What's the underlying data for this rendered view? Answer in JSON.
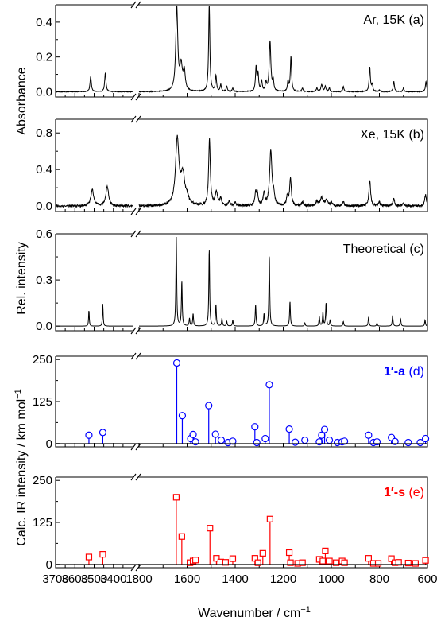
{
  "chart_data": {
    "type": "line",
    "x_axis": {
      "label": "Wavenumber / cm",
      "label_superscript": "−1",
      "reversed": true,
      "broken": true,
      "left_segment": {
        "range": [
          3700,
          3300
        ],
        "ticks": [
          3700,
          3600,
          3500,
          3400
        ]
      },
      "right_segment": {
        "range": [
          1800,
          600
        ],
        "ticks": [
          1800,
          1600,
          1400,
          1200,
          1000,
          800,
          600
        ]
      }
    },
    "shared_ylabels": {
      "absorbance": "Absorbance",
      "calc": "Calc. IR intensity / km mol",
      "calc_superscript": "−1"
    },
    "panels": [
      {
        "id": "a",
        "type": "line",
        "label": "Ar, 15K  (a)",
        "color": "#000000",
        "ylim": [
          -0.03,
          0.5
        ],
        "yticks": [
          "0.0",
          "0.2",
          "0.4"
        ],
        "ytick_values": [
          0,
          0.2,
          0.4
        ],
        "noise": 0.002,
        "width_scale": 1.0,
        "peaks": [
          [
            3518,
            0.09,
            4
          ],
          [
            3442,
            0.11,
            4
          ],
          [
            1643,
            0.48,
            5
          ],
          [
            1625,
            0.14,
            6
          ],
          [
            1612,
            0.11,
            5
          ],
          [
            1508,
            0.5,
            3
          ],
          [
            1480,
            0.09,
            3
          ],
          [
            1460,
            0.04,
            3
          ],
          [
            1435,
            0.03,
            3
          ],
          [
            1410,
            0.02,
            3
          ],
          [
            1313,
            0.14,
            3
          ],
          [
            1305,
            0.1,
            3
          ],
          [
            1290,
            0.06,
            3
          ],
          [
            1272,
            0.05,
            3
          ],
          [
            1255,
            0.29,
            4
          ],
          [
            1242,
            0.06,
            3
          ],
          [
            1180,
            0.06,
            3
          ],
          [
            1168,
            0.2,
            3
          ],
          [
            1120,
            0.02,
            3
          ],
          [
            1060,
            0.02,
            3
          ],
          [
            1040,
            0.04,
            4
          ],
          [
            1025,
            0.03,
            3
          ],
          [
            1008,
            0.02,
            3
          ],
          [
            950,
            0.03,
            3
          ],
          [
            840,
            0.14,
            3
          ],
          [
            830,
            0.04,
            3
          ],
          [
            800,
            0.01,
            3
          ],
          [
            740,
            0.06,
            3
          ],
          [
            700,
            0.02,
            3
          ],
          [
            606,
            0.06,
            3
          ]
        ]
      },
      {
        "id": "b",
        "type": "line",
        "label": "Xe, 15K  (b)",
        "color": "#000000",
        "ylim": [
          -0.06,
          0.95
        ],
        "yticks": [
          "0.0",
          "0.4",
          "0.8"
        ],
        "ytick_values": [
          0,
          0.4,
          0.8
        ],
        "noise": 0.012,
        "width_scale": 1.4,
        "peaks": [
          [
            3510,
            0.18,
            6
          ],
          [
            3432,
            0.22,
            6
          ],
          [
            1641,
            0.72,
            6
          ],
          [
            1618,
            0.32,
            7
          ],
          [
            1600,
            0.06,
            6
          ],
          [
            1507,
            0.72,
            3
          ],
          [
            1478,
            0.15,
            4
          ],
          [
            1460,
            0.08,
            3
          ],
          [
            1425,
            0.05,
            3
          ],
          [
            1400,
            0.04,
            3
          ],
          [
            1315,
            0.13,
            3
          ],
          [
            1308,
            0.12,
            3
          ],
          [
            1280,
            0.14,
            3
          ],
          [
            1252,
            0.6,
            4
          ],
          [
            1240,
            0.1,
            3
          ],
          [
            1183,
            0.1,
            3
          ],
          [
            1170,
            0.3,
            3
          ],
          [
            1120,
            0.04,
            3
          ],
          [
            1060,
            0.05,
            3
          ],
          [
            1040,
            0.09,
            5
          ],
          [
            1020,
            0.06,
            4
          ],
          [
            1000,
            0.04,
            3
          ],
          [
            950,
            0.05,
            3
          ],
          [
            840,
            0.28,
            3
          ],
          [
            800,
            0.04,
            3
          ],
          [
            740,
            0.08,
            3
          ],
          [
            700,
            0.03,
            3
          ],
          [
            608,
            0.12,
            3
          ]
        ]
      },
      {
        "id": "c",
        "type": "line",
        "label": "Theoretical  (c)",
        "color": "#000000",
        "ylabel": "Rel. intensity",
        "ylim": [
          -0.03,
          0.6
        ],
        "yticks": [
          "0.0",
          "0.3",
          "0.6"
        ],
        "ytick_values": [
          0,
          0.3,
          0.6
        ],
        "noise": 0.0,
        "width_scale": 1.0,
        "peaks": [
          [
            3527,
            0.11,
            2
          ],
          [
            3455,
            0.15,
            2
          ],
          [
            1645,
            0.58,
            2
          ],
          [
            1622,
            0.29,
            2
          ],
          [
            1590,
            0.05,
            2
          ],
          [
            1575,
            0.08,
            2
          ],
          [
            1508,
            0.5,
            2
          ],
          [
            1480,
            0.14,
            2
          ],
          [
            1455,
            0.05,
            2
          ],
          [
            1435,
            0.03,
            2
          ],
          [
            1410,
            0.04,
            2
          ],
          [
            1315,
            0.14,
            2
          ],
          [
            1280,
            0.08,
            2
          ],
          [
            1258,
            0.46,
            2
          ],
          [
            1172,
            0.16,
            2
          ],
          [
            1110,
            0.02,
            2
          ],
          [
            1050,
            0.06,
            2
          ],
          [
            1035,
            0.09,
            2
          ],
          [
            1022,
            0.15,
            2
          ],
          [
            1005,
            0.04,
            2
          ],
          [
            950,
            0.03,
            2
          ],
          [
            845,
            0.06,
            2
          ],
          [
            810,
            0.02,
            2
          ],
          [
            745,
            0.07,
            2
          ],
          [
            712,
            0.05,
            2
          ],
          [
            610,
            0.04,
            2
          ]
        ]
      },
      {
        "id": "d",
        "type": "stem",
        "label": "1′-a",
        "label_suffix": "(d)",
        "color": "#0000ff",
        "marker": "circle",
        "ylim": [
          -10,
          260
        ],
        "yticks": [
          "0",
          "125",
          "250"
        ],
        "ytick_values": [
          0,
          125,
          250
        ],
        "sticks": [
          [
            3527,
            25
          ],
          [
            3455,
            33
          ],
          [
            1643,
            240
          ],
          [
            1620,
            83
          ],
          [
            1585,
            15
          ],
          [
            1575,
            27
          ],
          [
            1565,
            5
          ],
          [
            1510,
            113
          ],
          [
            1482,
            28
          ],
          [
            1458,
            10
          ],
          [
            1430,
            3
          ],
          [
            1410,
            7
          ],
          [
            1318,
            50
          ],
          [
            1310,
            3
          ],
          [
            1275,
            15
          ],
          [
            1258,
            175
          ],
          [
            1175,
            43
          ],
          [
            1150,
            4
          ],
          [
            1110,
            10
          ],
          [
            1050,
            5
          ],
          [
            1040,
            25
          ],
          [
            1028,
            42
          ],
          [
            1008,
            10
          ],
          [
            975,
            3
          ],
          [
            955,
            5
          ],
          [
            945,
            7
          ],
          [
            845,
            25
          ],
          [
            825,
            3
          ],
          [
            810,
            5
          ],
          [
            750,
            18
          ],
          [
            735,
            6
          ],
          [
            680,
            3
          ],
          [
            630,
            3
          ],
          [
            608,
            15
          ]
        ]
      },
      {
        "id": "e",
        "type": "stem",
        "label": "1′-s",
        "label_suffix": "(e)",
        "color": "#ff0000",
        "marker": "square",
        "ylim": [
          -10,
          260
        ],
        "yticks": [
          "0",
          "125",
          "250"
        ],
        "ytick_values": [
          0,
          125,
          250
        ],
        "sticks": [
          [
            3527,
            22
          ],
          [
            3455,
            30
          ],
          [
            1645,
            200
          ],
          [
            1622,
            83
          ],
          [
            1588,
            5
          ],
          [
            1575,
            10
          ],
          [
            1565,
            13
          ],
          [
            1505,
            108
          ],
          [
            1478,
            18
          ],
          [
            1460,
            7
          ],
          [
            1440,
            6
          ],
          [
            1410,
            17
          ],
          [
            1318,
            18
          ],
          [
            1305,
            5
          ],
          [
            1285,
            33
          ],
          [
            1255,
            135
          ],
          [
            1175,
            35
          ],
          [
            1170,
            5
          ],
          [
            1140,
            3
          ],
          [
            1120,
            5
          ],
          [
            1050,
            15
          ],
          [
            1035,
            10
          ],
          [
            1025,
            40
          ],
          [
            1008,
            10
          ],
          [
            980,
            5
          ],
          [
            955,
            10
          ],
          [
            945,
            5
          ],
          [
            845,
            18
          ],
          [
            825,
            3
          ],
          [
            805,
            3
          ],
          [
            750,
            17
          ],
          [
            735,
            5
          ],
          [
            720,
            6
          ],
          [
            680,
            4
          ],
          [
            650,
            3
          ],
          [
            608,
            12
          ]
        ]
      }
    ]
  }
}
